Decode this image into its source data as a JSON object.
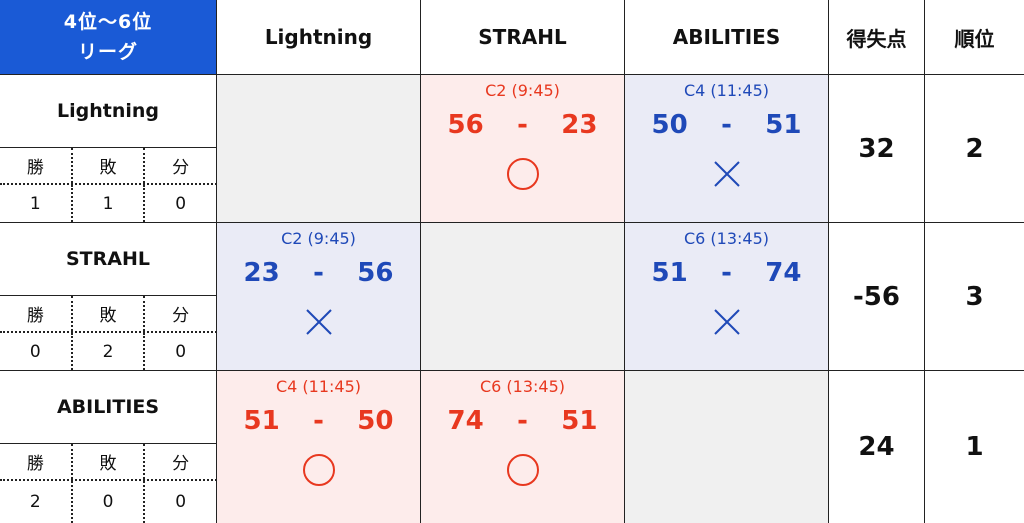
{
  "header": {
    "corner_line1": "4位～6位",
    "corner_line2": "リーグ",
    "columns": [
      "Lightning",
      "STRAHL",
      "ABILITIES"
    ],
    "points_label": "得失点",
    "rank_label": "順位"
  },
  "record_labels": [
    "勝",
    "敗",
    "分"
  ],
  "colors": {
    "header_blue": "#1a5ad6",
    "win_red": "#e8381f",
    "loss_blue": "#1f49b8",
    "win_bg": "#fdeceb",
    "loss_bg": "#eaebf6",
    "self_bg": "#f0f0f0"
  },
  "teams": [
    {
      "name": "Lightning",
      "record": [
        "1",
        "1",
        "0"
      ],
      "points": "32",
      "rank": "2",
      "matches": [
        null,
        {
          "time": "C2 (9:45)",
          "score_left": "56",
          "dash": "-",
          "score_right": "23",
          "result": "win"
        },
        {
          "time": "C4 (11:45)",
          "score_left": "50",
          "dash": "-",
          "score_right": "51",
          "result": "loss"
        }
      ]
    },
    {
      "name": "STRAHL",
      "record": [
        "0",
        "2",
        "0"
      ],
      "points": "-56",
      "rank": "3",
      "matches": [
        {
          "time": "C2 (9:45)",
          "score_left": "23",
          "dash": "-",
          "score_right": "56",
          "result": "loss"
        },
        null,
        {
          "time": "C6 (13:45)",
          "score_left": "51",
          "dash": "-",
          "score_right": "74",
          "result": "loss"
        }
      ]
    },
    {
      "name": "ABILITIES",
      "record": [
        "2",
        "0",
        "0"
      ],
      "points": "24",
      "rank": "1",
      "matches": [
        {
          "time": "C4 (11:45)",
          "score_left": "51",
          "dash": "-",
          "score_right": "50",
          "result": "win"
        },
        {
          "time": "C6 (13:45)",
          "score_left": "74",
          "dash": "-",
          "score_right": "51",
          "result": "win"
        },
        null
      ]
    }
  ]
}
